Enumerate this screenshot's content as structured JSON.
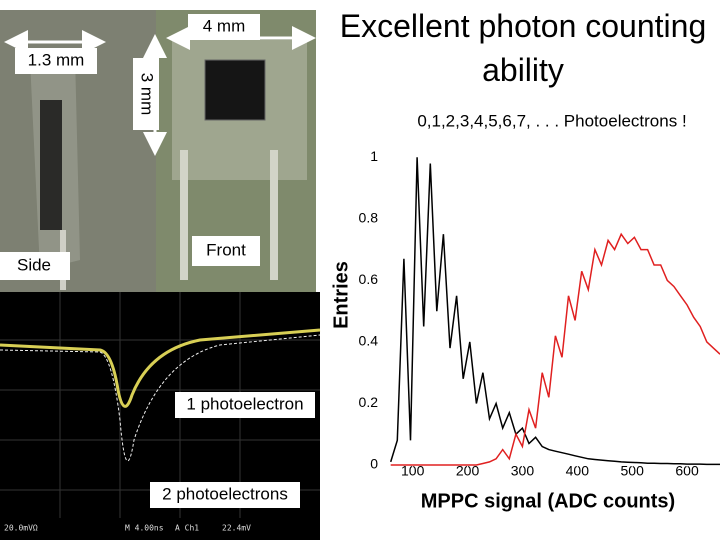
{
  "chart_data": {
    "type": "line",
    "title": "Excellent photon counting ability",
    "subtitle": "0,1,2,3,4,5,6,7, . . . Photoelectrons !",
    "x_label": "MPPC signal (ADC counts)",
    "y_label": "Entries",
    "x": [
      60,
      72,
      84,
      96,
      108,
      120,
      132,
      144,
      156,
      168,
      180,
      192,
      204,
      216,
      228,
      240,
      252,
      264,
      276,
      288,
      300,
      312,
      324,
      336,
      348,
      360,
      372,
      384,
      396,
      408,
      420,
      432,
      444,
      456,
      468,
      480,
      492,
      504,
      516,
      528,
      540,
      552,
      564,
      576,
      588,
      600,
      612,
      624,
      636,
      648,
      660
    ],
    "series": [
      {
        "name": "black",
        "color": "#000000",
        "values": [
          0.01,
          0.08,
          0.67,
          0.08,
          1.0,
          0.45,
          0.98,
          0.5,
          0.75,
          0.38,
          0.55,
          0.28,
          0.4,
          0.2,
          0.3,
          0.15,
          0.2,
          0.12,
          0.17,
          0.1,
          0.12,
          0.07,
          0.09,
          0.06,
          0.05,
          0.045,
          0.04,
          0.035,
          0.03,
          0.025,
          0.02,
          0.018,
          0.016,
          0.014,
          0.012,
          0.01,
          0.009,
          0.008,
          0.007,
          0.006,
          0.006,
          0.005,
          0.005,
          0.004,
          0.004,
          0.003,
          0.003,
          0.003,
          0.002,
          0.002,
          0.002
        ]
      },
      {
        "name": "red",
        "color": "#e02020",
        "values": [
          0,
          0,
          0,
          0,
          0,
          0,
          0,
          0,
          0,
          0,
          0,
          0,
          0,
          0,
          0.005,
          0.01,
          0.02,
          0.05,
          0.02,
          0.1,
          0.06,
          0.18,
          0.12,
          0.3,
          0.22,
          0.42,
          0.35,
          0.55,
          0.47,
          0.63,
          0.57,
          0.7,
          0.65,
          0.73,
          0.7,
          0.75,
          0.72,
          0.74,
          0.7,
          0.7,
          0.65,
          0.65,
          0.6,
          0.58,
          0.55,
          0.52,
          0.48,
          0.45,
          0.4,
          0.38,
          0.36
        ]
      }
    ],
    "xlim": [
      55,
      660
    ],
    "xticks": [
      100,
      200,
      300,
      400,
      500,
      600
    ],
    "ylim": [
      0,
      1.04
    ],
    "yticks": [
      0,
      0.2,
      0.4,
      0.6,
      0.8,
      1
    ]
  },
  "annotations": {
    "width": "4 mm",
    "depth": "1.3 mm",
    "height": "3 mm",
    "side": "Side",
    "front": "Front",
    "one_pe": "1 photoelectron",
    "two_pe": "2 photoelectrons",
    "scope_scale": "20.0mVΩ",
    "scope_time": "M 4.00ns",
    "scope_trigger": "A Ch1",
    "scope_level": "22.4mV"
  }
}
